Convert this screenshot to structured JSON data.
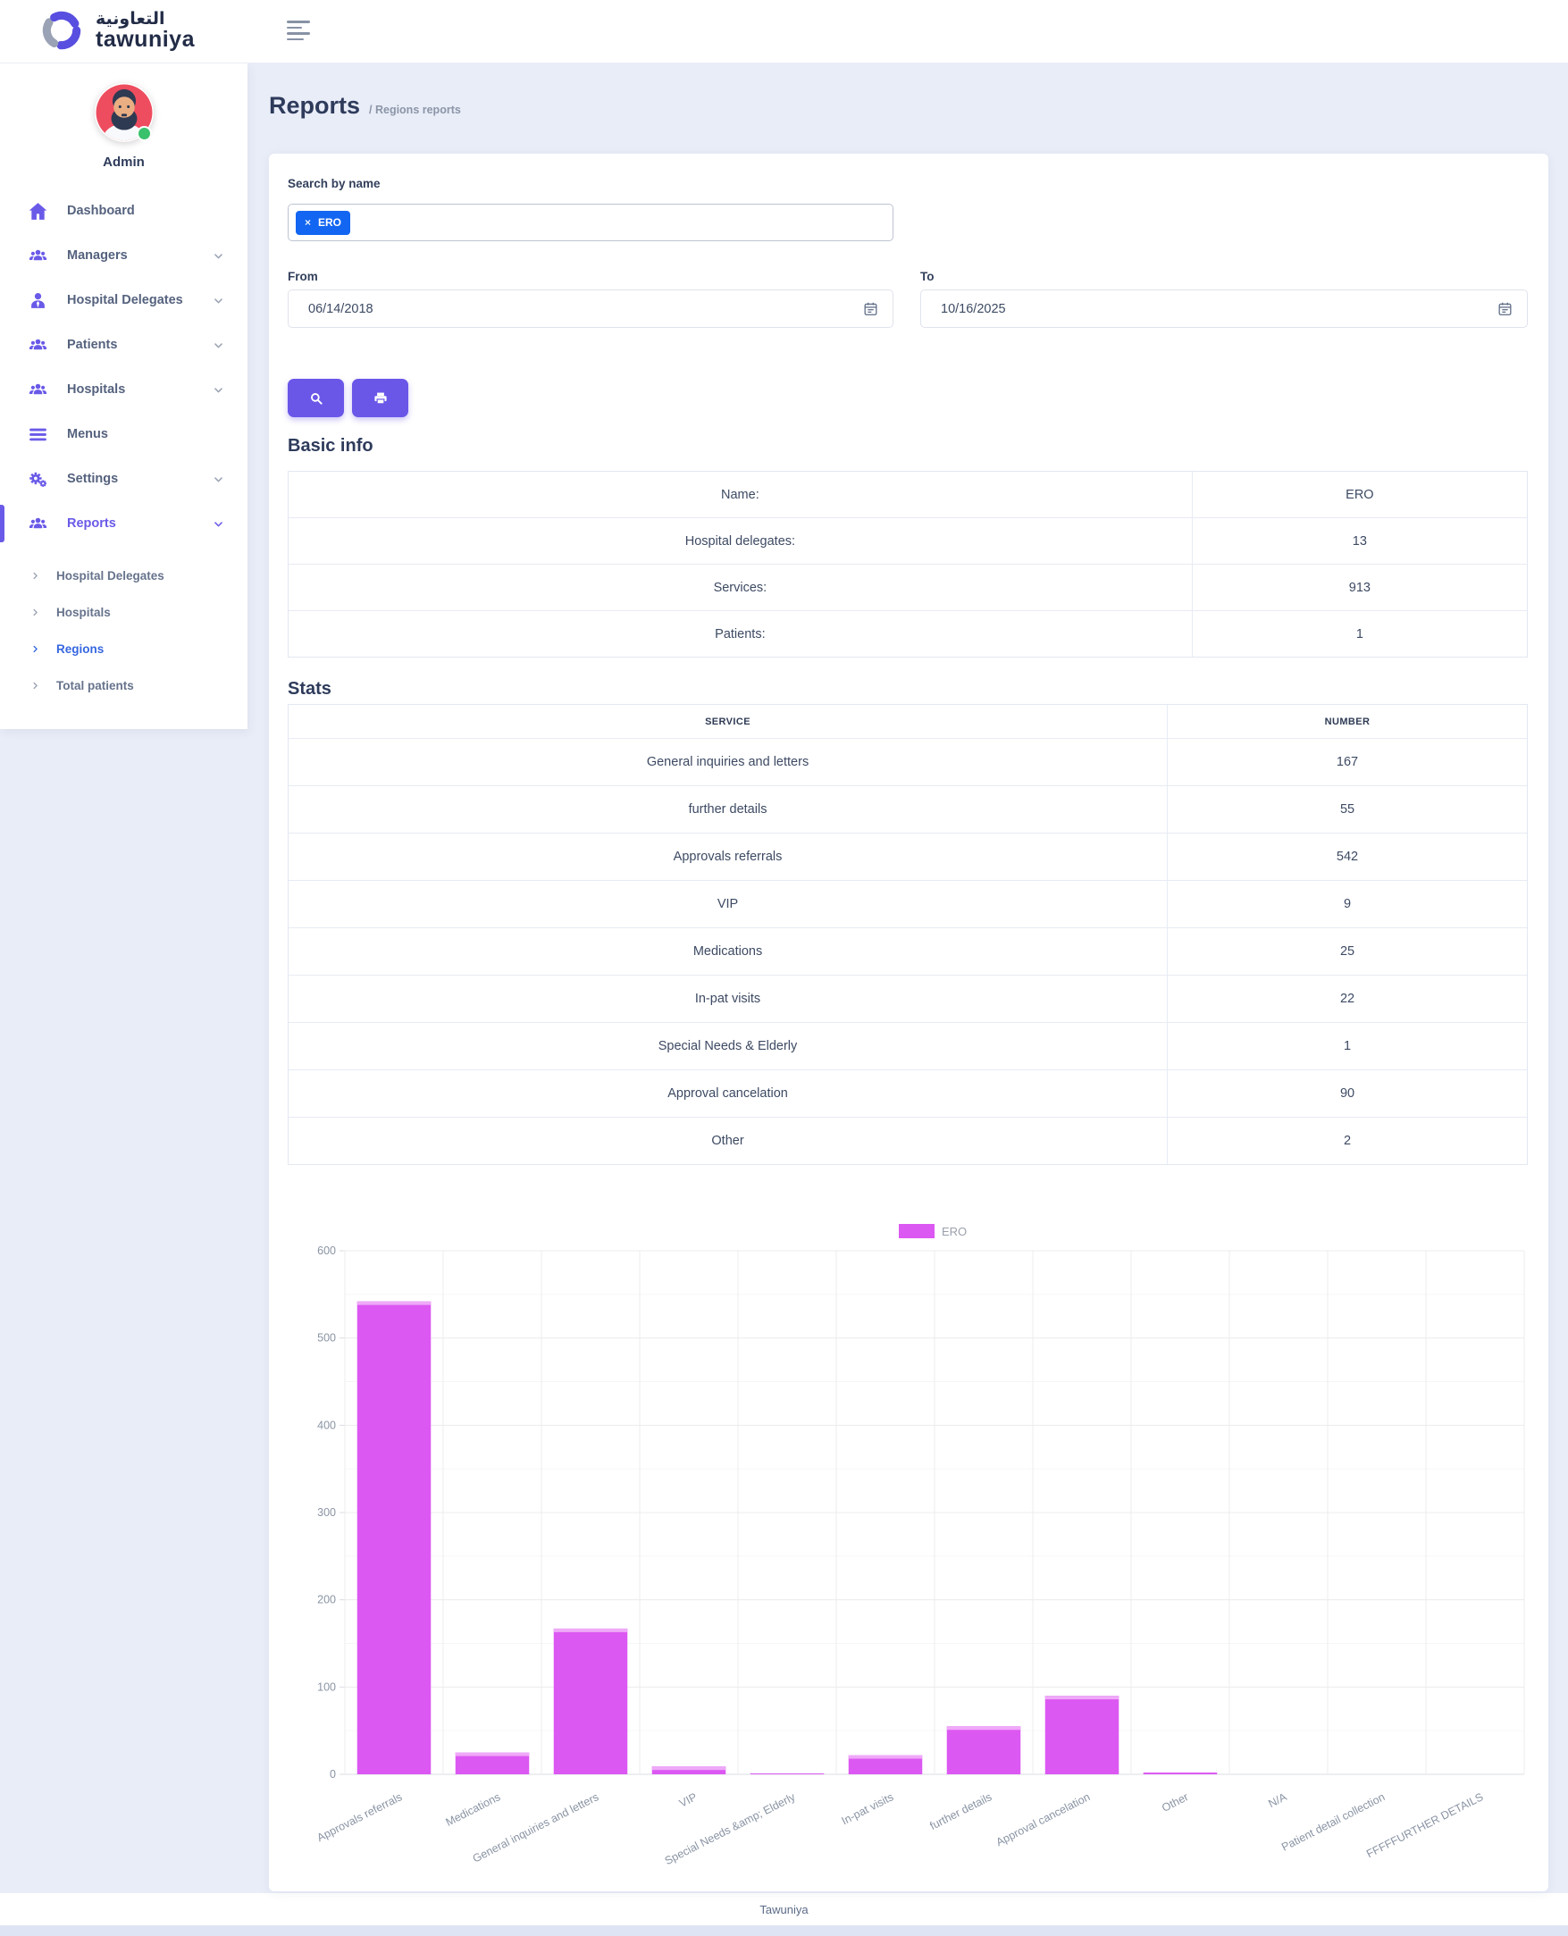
{
  "colors": {
    "accent_purple": "#6a5ae8",
    "chip_blue": "#1266f1",
    "bar_magenta": "#dc58f2",
    "status_green": "#39c16c",
    "active_link_blue": "#3667e0"
  },
  "logo": {
    "arabic": "التعاونية",
    "latin": "tawuniya"
  },
  "header": {
    "menu_icon": "menu-icon"
  },
  "sidebar": {
    "user": "Admin",
    "items": [
      {
        "label": "Dashboard",
        "icon": "home",
        "chevron": false,
        "active": false
      },
      {
        "label": "Managers",
        "icon": "users",
        "chevron": true,
        "active": false
      },
      {
        "label": "Hospital Delegates",
        "icon": "user-tie",
        "chevron": true,
        "active": false
      },
      {
        "label": "Patients",
        "icon": "users",
        "chevron": true,
        "active": false
      },
      {
        "label": "Hospitals",
        "icon": "users",
        "chevron": true,
        "active": false
      },
      {
        "label": "Menus",
        "icon": "bars",
        "chevron": false,
        "active": false
      },
      {
        "label": "Settings",
        "icon": "gears",
        "chevron": true,
        "active": false
      },
      {
        "label": "Reports",
        "icon": "users",
        "chevron": true,
        "active": true
      }
    ],
    "subitems": [
      {
        "label": "Hospital Delegates",
        "active": false
      },
      {
        "label": "Hospitals",
        "active": false
      },
      {
        "label": "Regions",
        "active": true
      },
      {
        "label": "Total patients",
        "active": false
      }
    ]
  },
  "breadcrumb": {
    "title": "Reports",
    "path": "/ Regions reports"
  },
  "filters": {
    "search_label": "Search by name",
    "chip": "ERO",
    "from_label": "From",
    "from_value": "06/14/2018",
    "to_label": "To",
    "to_value": "10/16/2025"
  },
  "basic_info": {
    "title": "Basic info",
    "rows": [
      [
        "Name:",
        "ERO"
      ],
      [
        "Hospital delegates:",
        "13"
      ],
      [
        "Services:",
        "913"
      ],
      [
        "Patients:",
        "1"
      ]
    ]
  },
  "stats": {
    "title": "Stats",
    "columns": [
      "SERVICE",
      "NUMBER"
    ],
    "rows": [
      [
        "General inquiries and letters",
        "167"
      ],
      [
        "further details",
        "55"
      ],
      [
        "Approvals referrals",
        "542"
      ],
      [
        "VIP",
        "9"
      ],
      [
        "Medications",
        "25"
      ],
      [
        "In-pat visits",
        "22"
      ],
      [
        "Special Needs & Elderly",
        "1"
      ],
      [
        "Approval cancelation",
        "90"
      ],
      [
        "Other",
        "2"
      ]
    ]
  },
  "chart_data": {
    "type": "bar",
    "title": "",
    "categories": [
      "Approvals referrals",
      "Medications",
      "General inquiries and letters",
      "VIP",
      "Special Needs &amp; Elderly",
      "In-pat visits",
      "further details",
      "Approval cancelation",
      "Other",
      "N/A",
      "Patient detail collection",
      "FFFFFURTHER DETAILS"
    ],
    "series": [
      {
        "name": "ERO",
        "values": [
          542,
          25,
          167,
          9,
          1,
          22,
          55,
          90,
          2,
          0,
          0,
          0
        ]
      }
    ],
    "ylim": [
      0,
      600
    ],
    "ytick_step": 100,
    "minor_step": 50,
    "grid": true,
    "legend_position": "top",
    "bar_color": "#dc58f2",
    "bar_cap_color": "#efa9f8"
  },
  "footer": {
    "text": "Tawuniya"
  }
}
